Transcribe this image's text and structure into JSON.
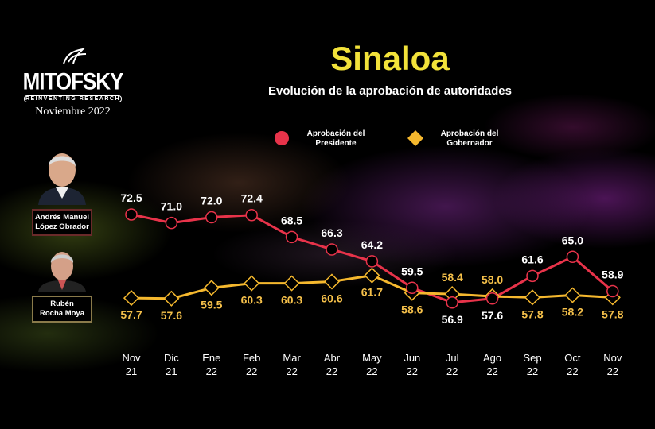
{
  "logo": {
    "brand": "MITOFSKY",
    "tagline": "REINVENTING RESEARCH",
    "date": "Noviembre 2022"
  },
  "people": [
    {
      "name_line1": "Andrés Manuel",
      "name_line2": "López Obrador"
    },
    {
      "name_line1": "Rubén",
      "name_line2": "Rocha Moya"
    }
  ],
  "chart_data": {
    "type": "line",
    "title": "Sinaloa",
    "subtitle": "Evolución de la aprobación de autoridades",
    "categories": [
      [
        "Nov",
        "21"
      ],
      [
        "Dic",
        "21"
      ],
      [
        "Ene",
        "22"
      ],
      [
        "Feb",
        "22"
      ],
      [
        "Mar",
        "22"
      ],
      [
        "Abr",
        "22"
      ],
      [
        "May",
        "22"
      ],
      [
        "Jun",
        "22"
      ],
      [
        "Jul",
        "22"
      ],
      [
        "Ago",
        "22"
      ],
      [
        "Sep",
        "22"
      ],
      [
        "Oct",
        "22"
      ],
      [
        "Nov",
        "22"
      ]
    ],
    "series": [
      {
        "name_line1": "Aprobación del",
        "name_line2": "Presidente",
        "color": "#e8334a",
        "marker": "circle",
        "values": [
          72.5,
          71.0,
          72.0,
          72.4,
          68.5,
          66.3,
          64.2,
          59.5,
          56.9,
          57.6,
          61.6,
          65.0,
          58.9
        ]
      },
      {
        "name_line1": "Aprobación del",
        "name_line2": "Gobernador",
        "color": "#f5b82e",
        "marker": "diamond",
        "values": [
          57.7,
          57.6,
          59.5,
          60.3,
          60.3,
          60.6,
          61.7,
          58.6,
          58.4,
          58.0,
          57.8,
          58.2,
          57.8
        ]
      }
    ],
    "legend": "top",
    "grid": false
  }
}
